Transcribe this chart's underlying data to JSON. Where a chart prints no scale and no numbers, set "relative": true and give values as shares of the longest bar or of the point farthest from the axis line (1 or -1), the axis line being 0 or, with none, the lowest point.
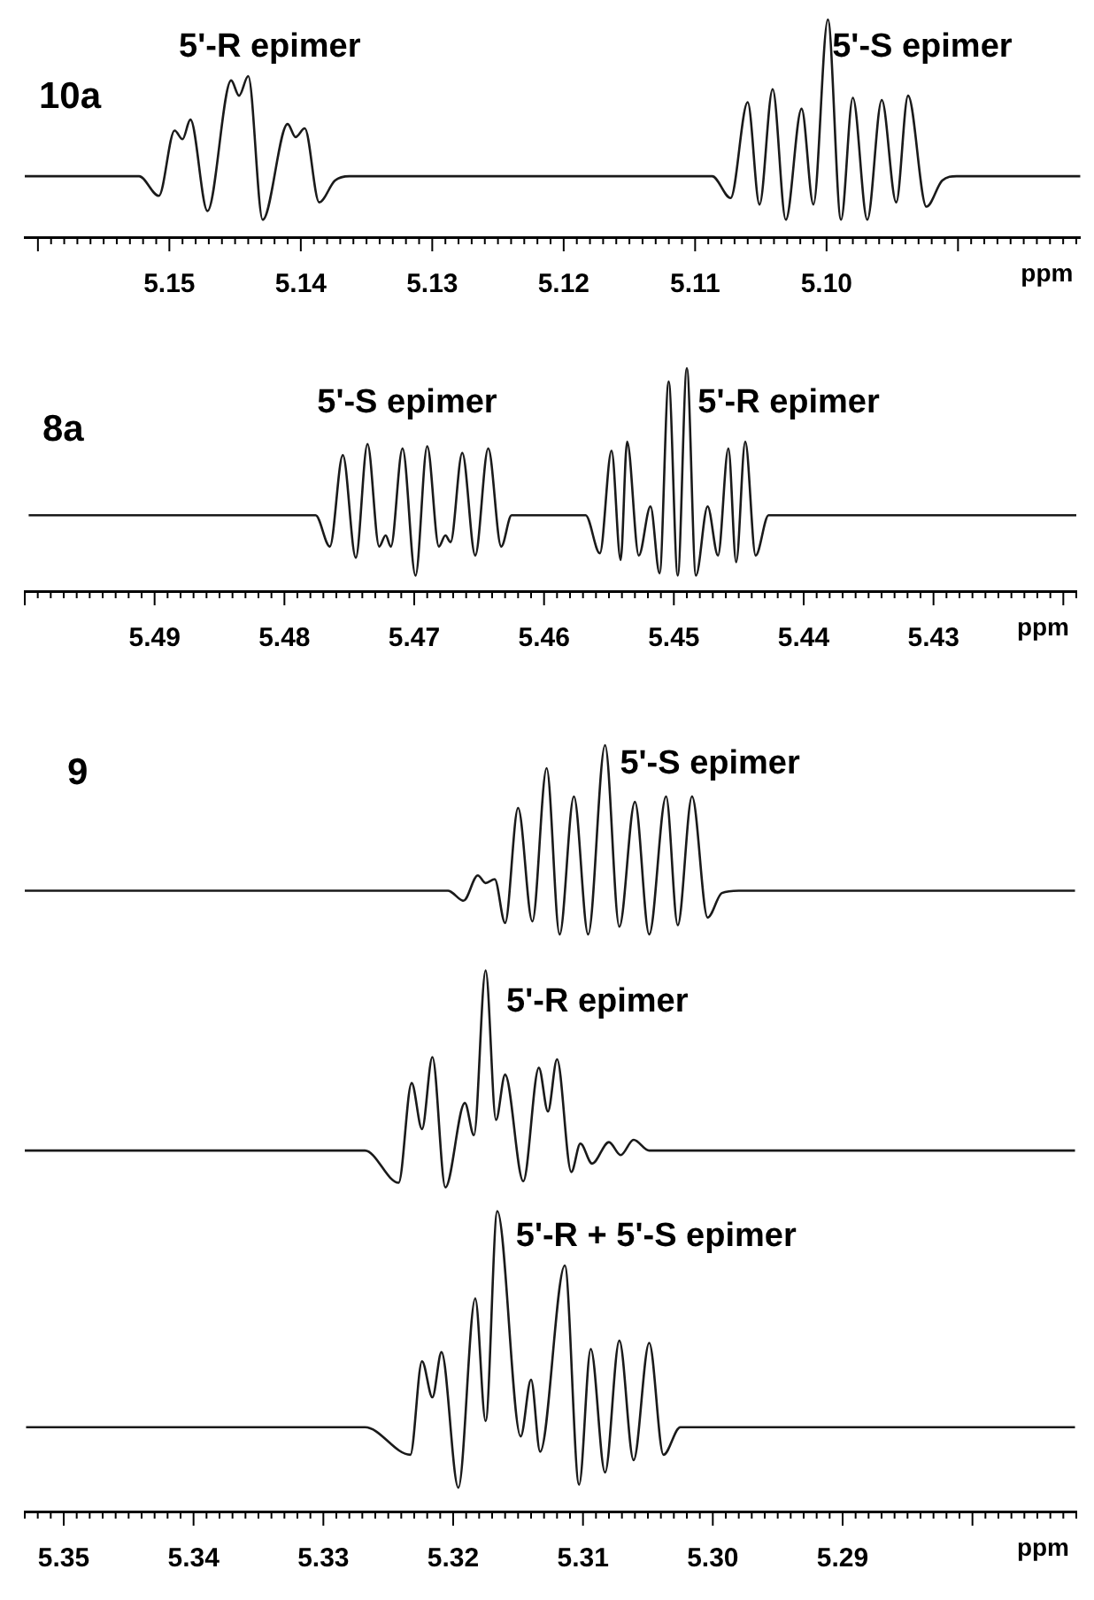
{
  "chart_data": [
    {
      "type": "line",
      "title": "10a",
      "xlabel": "ppm",
      "relative": true,
      "color": "#1a1a1a",
      "xlim": [
        5.161,
        5.0807
      ],
      "xticks": [
        {
          "value": 5.16,
          "label": null
        },
        {
          "value": 5.159,
          "label": null
        },
        {
          "value": 5.158,
          "label": null
        },
        {
          "value": 5.157,
          "label": null
        },
        {
          "value": 5.156,
          "label": null
        },
        {
          "value": 5.155,
          "label": null
        },
        {
          "value": 5.154,
          "label": null
        },
        {
          "value": 5.153,
          "label": null
        },
        {
          "value": 5.152,
          "label": null
        },
        {
          "value": 5.151,
          "label": null
        },
        5.15,
        {
          "value": 5.149,
          "label": null
        },
        {
          "value": 5.148,
          "label": null
        },
        {
          "value": 5.147,
          "label": null
        },
        {
          "value": 5.146,
          "label": null
        },
        {
          "value": 5.145,
          "label": null
        },
        {
          "value": 5.144,
          "label": null
        },
        {
          "value": 5.143,
          "label": null
        },
        {
          "value": 5.142,
          "label": null
        },
        {
          "value": 5.141,
          "label": null
        },
        5.14,
        {
          "value": 5.139,
          "label": null
        },
        {
          "value": 5.138,
          "label": null
        },
        {
          "value": 5.137,
          "label": null
        },
        {
          "value": 5.136,
          "label": null
        },
        {
          "value": 5.135,
          "label": null
        },
        {
          "value": 5.134,
          "label": null
        },
        {
          "value": 5.133,
          "label": null
        },
        {
          "value": 5.132,
          "label": null
        },
        {
          "value": 5.131,
          "label": null
        },
        5.13,
        {
          "value": 5.129,
          "label": null
        },
        {
          "value": 5.128,
          "label": null
        },
        {
          "value": 5.127,
          "label": null
        },
        {
          "value": 5.126,
          "label": null
        },
        {
          "value": 5.125,
          "label": null
        },
        {
          "value": 5.124,
          "label": null
        },
        {
          "value": 5.123,
          "label": null
        },
        {
          "value": 5.122,
          "label": null
        },
        {
          "value": 5.121,
          "label": null
        },
        5.12,
        {
          "value": 5.119,
          "label": null
        },
        {
          "value": 5.118,
          "label": null
        },
        {
          "value": 5.117,
          "label": null
        },
        {
          "value": 5.116,
          "label": null
        },
        {
          "value": 5.115,
          "label": null
        },
        {
          "value": 5.114,
          "label": null
        },
        {
          "value": 5.113,
          "label": null
        },
        {
          "value": 5.112,
          "label": null
        },
        {
          "value": 5.111,
          "label": null
        },
        5.11,
        {
          "value": 5.109,
          "label": null
        },
        {
          "value": 5.108,
          "label": null
        },
        {
          "value": 5.107,
          "label": null
        },
        {
          "value": 5.106,
          "label": null
        },
        {
          "value": 5.105,
          "label": null
        },
        {
          "value": 5.104,
          "label": null
        },
        {
          "value": 5.103,
          "label": null
        },
        {
          "value": 5.102,
          "label": null
        },
        {
          "value": 5.101,
          "label": null
        },
        {
          "value": 5.1,
          "label": "5.10"
        },
        {
          "value": 5.099,
          "label": null
        },
        {
          "value": 5.098,
          "label": null
        },
        {
          "value": 5.097,
          "label": null
        },
        {
          "value": 5.096,
          "label": null
        },
        {
          "value": 5.095,
          "label": null
        },
        {
          "value": 5.094,
          "label": null
        },
        {
          "value": 5.093,
          "label": null
        },
        {
          "value": 5.092,
          "label": null
        },
        {
          "value": 5.091,
          "label": null
        },
        {
          "value": 5.09,
          "label": null
        },
        {
          "value": 5.089,
          "label": null
        },
        {
          "value": 5.088,
          "label": null
        },
        {
          "value": 5.087,
          "label": null
        },
        {
          "value": 5.086,
          "label": null
        },
        {
          "value": 5.085,
          "label": null
        },
        {
          "value": 5.084,
          "label": null
        },
        {
          "value": 5.083,
          "label": null
        },
        {
          "value": 5.082,
          "label": null
        },
        {
          "value": 5.081,
          "label": null
        }
      ],
      "x": [
        5.161,
        5.1523,
        5.1508,
        5.1496,
        5.149,
        5.1484,
        5.1471,
        5.1453,
        5.1447,
        5.144,
        5.1429,
        5.141,
        5.1404,
        5.1397,
        5.1386,
        5.1374,
        5.1363,
        5.1087,
        5.1073,
        5.106,
        5.1051,
        5.1041,
        5.1031,
        5.1019,
        5.101,
        5.0999,
        5.0989,
        5.098,
        5.0969,
        5.0958,
        5.0947,
        5.0938,
        5.0924,
        5.0912,
        5.0901,
        5.0807
      ],
      "values": [
        0.28,
        0.28,
        0.19,
        0.49,
        0.45,
        0.54,
        0.12,
        0.72,
        0.65,
        0.74,
        0.08,
        0.52,
        0.46,
        0.5,
        0.16,
        0.26,
        0.28,
        0.28,
        0.18,
        0.62,
        0.15,
        0.68,
        0.08,
        0.59,
        0.15,
        1,
        0.08,
        0.64,
        0.08,
        0.63,
        0.16,
        0.65,
        0.14,
        0.26,
        0.28,
        0.28
      ],
      "annotations": [
        "5'-R epimer",
        "5'-S epimer"
      ]
    },
    {
      "type": "line",
      "title": "8a",
      "xlabel": "ppm",
      "relative": true,
      "color": "#1a1a1a",
      "xlim": [
        5.5,
        5.419
      ],
      "xticks": [
        {
          "value": 5.5,
          "label": null
        },
        {
          "value": 5.499,
          "label": null
        },
        {
          "value": 5.498,
          "label": null
        },
        {
          "value": 5.497,
          "label": null
        },
        {
          "value": 5.496,
          "label": null
        },
        {
          "value": 5.495,
          "label": null
        },
        {
          "value": 5.494,
          "label": null
        },
        {
          "value": 5.493,
          "label": null
        },
        {
          "value": 5.492,
          "label": null
        },
        {
          "value": 5.491,
          "label": null
        },
        5.49,
        {
          "value": 5.489,
          "label": null
        },
        {
          "value": 5.488,
          "label": null
        },
        {
          "value": 5.487,
          "label": null
        },
        {
          "value": 5.486,
          "label": null
        },
        {
          "value": 5.485,
          "label": null
        },
        {
          "value": 5.484,
          "label": null
        },
        {
          "value": 5.483,
          "label": null
        },
        {
          "value": 5.482,
          "label": null
        },
        {
          "value": 5.481,
          "label": null
        },
        5.48,
        {
          "value": 5.479,
          "label": null
        },
        {
          "value": 5.478,
          "label": null
        },
        {
          "value": 5.477,
          "label": null
        },
        {
          "value": 5.476,
          "label": null
        },
        {
          "value": 5.475,
          "label": null
        },
        {
          "value": 5.474,
          "label": null
        },
        {
          "value": 5.473,
          "label": null
        },
        {
          "value": 5.472,
          "label": null
        },
        {
          "value": 5.471,
          "label": null
        },
        5.47,
        {
          "value": 5.469,
          "label": null
        },
        {
          "value": 5.468,
          "label": null
        },
        {
          "value": 5.467,
          "label": null
        },
        {
          "value": 5.466,
          "label": null
        },
        {
          "value": 5.465,
          "label": null
        },
        {
          "value": 5.464,
          "label": null
        },
        {
          "value": 5.463,
          "label": null
        },
        {
          "value": 5.462,
          "label": null
        },
        {
          "value": 5.461,
          "label": null
        },
        5.46,
        {
          "value": 5.459,
          "label": null
        },
        {
          "value": 5.458,
          "label": null
        },
        {
          "value": 5.457,
          "label": null
        },
        {
          "value": 5.456,
          "label": null
        },
        {
          "value": 5.455,
          "label": null
        },
        {
          "value": 5.454,
          "label": null
        },
        {
          "value": 5.453,
          "label": null
        },
        {
          "value": 5.452,
          "label": null
        },
        {
          "value": 5.451,
          "label": null
        },
        5.45,
        {
          "value": 5.449,
          "label": null
        },
        {
          "value": 5.448,
          "label": null
        },
        {
          "value": 5.447,
          "label": null
        },
        {
          "value": 5.446,
          "label": null
        },
        {
          "value": 5.445,
          "label": null
        },
        {
          "value": 5.444,
          "label": null
        },
        {
          "value": 5.443,
          "label": null
        },
        {
          "value": 5.442,
          "label": null
        },
        {
          "value": 5.441,
          "label": null
        },
        5.44,
        {
          "value": 5.439,
          "label": null
        },
        {
          "value": 5.438,
          "label": null
        },
        {
          "value": 5.437,
          "label": null
        },
        {
          "value": 5.436,
          "label": null
        },
        {
          "value": 5.435,
          "label": null
        },
        {
          "value": 5.434,
          "label": null
        },
        {
          "value": 5.433,
          "label": null
        },
        {
          "value": 5.432,
          "label": null
        },
        {
          "value": 5.431,
          "label": null
        },
        5.43,
        {
          "value": 5.429,
          "label": null
        },
        {
          "value": 5.428,
          "label": null
        },
        {
          "value": 5.427,
          "label": null
        },
        {
          "value": 5.426,
          "label": null
        },
        {
          "value": 5.425,
          "label": null
        },
        {
          "value": 5.424,
          "label": null
        },
        {
          "value": 5.423,
          "label": null
        },
        {
          "value": 5.422,
          "label": null
        },
        {
          "value": 5.421,
          "label": null
        },
        {
          "value": 5.42,
          "label": null
        },
        {
          "value": 5.419,
          "label": null
        }
      ],
      "x": [
        5.4997,
        5.4776,
        5.4765,
        5.4755,
        5.4745,
        5.4736,
        5.4727,
        5.4722,
        5.4718,
        5.4709,
        5.4699,
        5.469,
        5.4681,
        5.4676,
        5.4672,
        5.4663,
        5.4653,
        5.4643,
        5.4633,
        5.4625,
        5.4568,
        5.4557,
        5.4548,
        5.4541,
        5.4536,
        5.4527,
        5.4518,
        5.4511,
        5.4504,
        5.4497,
        5.449,
        5.4483,
        5.4474,
        5.4466,
        5.4458,
        5.4452,
        5.4445,
        5.4437,
        5.4427,
        5.419
      ],
      "values": [
        0.34,
        0.34,
        0.2,
        0.61,
        0.15,
        0.66,
        0.2,
        0.25,
        0.2,
        0.64,
        0.07,
        0.65,
        0.2,
        0.25,
        0.22,
        0.62,
        0.16,
        0.64,
        0.2,
        0.34,
        0.34,
        0.17,
        0.63,
        0.14,
        0.67,
        0.16,
        0.38,
        0.08,
        0.94,
        0.07,
        1,
        0.07,
        0.38,
        0.16,
        0.64,
        0.13,
        0.67,
        0.16,
        0.34,
        0.34
      ],
      "annotations": [
        "5'-S epimer",
        "5'-R epimer"
      ]
    },
    {
      "type": "line",
      "title": "9",
      "xlabel": "ppm",
      "relative": true,
      "xlim": [
        5.353,
        5.272
      ],
      "xticks": [
        {
          "value": 5.353,
          "label": null
        },
        {
          "value": 5.352,
          "label": null
        },
        {
          "value": 5.351,
          "label": null
        },
        5.35,
        {
          "value": 5.349,
          "label": null
        },
        {
          "value": 5.348,
          "label": null
        },
        {
          "value": 5.347,
          "label": null
        },
        {
          "value": 5.346,
          "label": null
        },
        {
          "value": 5.345,
          "label": null
        },
        {
          "value": 5.344,
          "label": null
        },
        {
          "value": 5.343,
          "label": null
        },
        {
          "value": 5.342,
          "label": null
        },
        {
          "value": 5.341,
          "label": null
        },
        5.34,
        {
          "value": 5.339,
          "label": null
        },
        {
          "value": 5.338,
          "label": null
        },
        {
          "value": 5.337,
          "label": null
        },
        {
          "value": 5.336,
          "label": null
        },
        {
          "value": 5.335,
          "label": null
        },
        {
          "value": 5.334,
          "label": null
        },
        {
          "value": 5.333,
          "label": null
        },
        {
          "value": 5.332,
          "label": null
        },
        {
          "value": 5.331,
          "label": null
        },
        5.33,
        {
          "value": 5.329,
          "label": null
        },
        {
          "value": 5.328,
          "label": null
        },
        {
          "value": 5.327,
          "label": null
        },
        {
          "value": 5.326,
          "label": null
        },
        {
          "value": 5.325,
          "label": null
        },
        {
          "value": 5.324,
          "label": null
        },
        {
          "value": 5.323,
          "label": null
        },
        {
          "value": 5.322,
          "label": null
        },
        {
          "value": 5.321,
          "label": null
        },
        5.32,
        {
          "value": 5.319,
          "label": null
        },
        {
          "value": 5.318,
          "label": null
        },
        {
          "value": 5.317,
          "label": null
        },
        {
          "value": 5.316,
          "label": null
        },
        {
          "value": 5.315,
          "label": null
        },
        {
          "value": 5.314,
          "label": null
        },
        {
          "value": 5.313,
          "label": null
        },
        {
          "value": 5.312,
          "label": null
        },
        {
          "value": 5.311,
          "label": null
        },
        5.31,
        {
          "value": 5.309,
          "label": null
        },
        {
          "value": 5.308,
          "label": null
        },
        {
          "value": 5.307,
          "label": null
        },
        {
          "value": 5.306,
          "label": null
        },
        {
          "value": 5.305,
          "label": null
        },
        {
          "value": 5.304,
          "label": null
        },
        {
          "value": 5.303,
          "label": null
        },
        {
          "value": 5.302,
          "label": null
        },
        {
          "value": 5.301,
          "label": null
        },
        {
          "value": 5.3,
          "label": "5.30"
        },
        {
          "value": 5.299,
          "label": null
        },
        {
          "value": 5.298,
          "label": null
        },
        {
          "value": 5.297,
          "label": null
        },
        {
          "value": 5.296,
          "label": null
        },
        {
          "value": 5.295,
          "label": null
        },
        {
          "value": 5.294,
          "label": null
        },
        {
          "value": 5.293,
          "label": null
        },
        {
          "value": 5.292,
          "label": null
        },
        {
          "value": 5.291,
          "label": null
        },
        5.29,
        {
          "value": 5.289,
          "label": null
        },
        {
          "value": 5.288,
          "label": null
        },
        {
          "value": 5.287,
          "label": null
        },
        {
          "value": 5.286,
          "label": null
        },
        {
          "value": 5.285,
          "label": null
        },
        {
          "value": 5.284,
          "label": null
        },
        {
          "value": 5.283,
          "label": null
        },
        {
          "value": 5.282,
          "label": null
        },
        {
          "value": 5.281,
          "label": null
        },
        {
          "value": 5.28,
          "label": null
        },
        {
          "value": 5.279,
          "label": null
        },
        {
          "value": 5.278,
          "label": null
        },
        {
          "value": 5.277,
          "label": null
        },
        {
          "value": 5.276,
          "label": null
        },
        {
          "value": 5.275,
          "label": null
        },
        {
          "value": 5.274,
          "label": null
        },
        {
          "value": 5.273,
          "label": null
        },
        {
          "value": 5.272,
          "label": null
        }
      ],
      "series": [
        {
          "color": "#1a1a1a",
          "x": [
            5.353,
            5.3204,
            5.3192,
            5.3181,
            5.3175,
            5.3168,
            5.316,
            5.315,
            5.3139,
            5.3128,
            5.3118,
            5.3107,
            5.3096,
            5.3083,
            5.3072,
            5.306,
            5.3049,
            5.3036,
            5.3027,
            5.3016,
            5.3004,
            5.2993,
            5.298,
            5.2721
          ],
          "values": [
            0.81,
            0.81,
            0.797,
            0.83,
            0.82,
            0.825,
            0.768,
            0.918,
            0.77,
            0.97,
            0.753,
            0.933,
            0.753,
            1,
            0.763,
            0.926,
            0.753,
            0.933,
            0.765,
            0.933,
            0.775,
            0.807,
            0.81,
            0.81
          ]
        },
        {
          "color": "#1a1a1a",
          "x": [
            5.353,
            5.3268,
            5.3242,
            5.3232,
            5.3224,
            5.3216,
            5.3206,
            5.3191,
            5.3184,
            5.3175,
            5.3167,
            5.316,
            5.3146,
            5.3134,
            5.3127,
            5.312,
            5.3109,
            5.3102,
            5.3093,
            5.308,
            5.3071,
            5.3061,
            5.3049,
            5.2721
          ],
          "values": [
            0.471,
            0.471,
            0.429,
            0.559,
            0.499,
            0.593,
            0.423,
            0.533,
            0.491,
            0.706,
            0.511,
            0.57,
            0.431,
            0.579,
            0.522,
            0.59,
            0.443,
            0.48,
            0.454,
            0.482,
            0.465,
            0.485,
            0.471,
            0.471
          ]
        },
        {
          "color": "#1a1a1a",
          "x": [
            5.3529,
            5.3268,
            5.3233,
            5.3224,
            5.3216,
            5.3209,
            5.3196,
            5.3183,
            5.3175,
            5.3166,
            5.3148,
            5.314,
            5.3133,
            5.3114,
            5.3103,
            5.3094,
            5.3083,
            5.3072,
            5.3061,
            5.3049,
            5.3038,
            5.3025,
            5.2721
          ],
          "values": [
            0.11,
            0.11,
            0.074,
            0.196,
            0.149,
            0.208,
            0.031,
            0.278,
            0.118,
            0.392,
            0.098,
            0.172,
            0.078,
            0.321,
            0.035,
            0.212,
            0.051,
            0.223,
            0.067,
            0.22,
            0.074,
            0.11,
            0.11
          ]
        }
      ],
      "annotations": [
        "5'-S epimer",
        "5'-R epimer",
        "5'-R + 5'-S epimer"
      ]
    }
  ]
}
